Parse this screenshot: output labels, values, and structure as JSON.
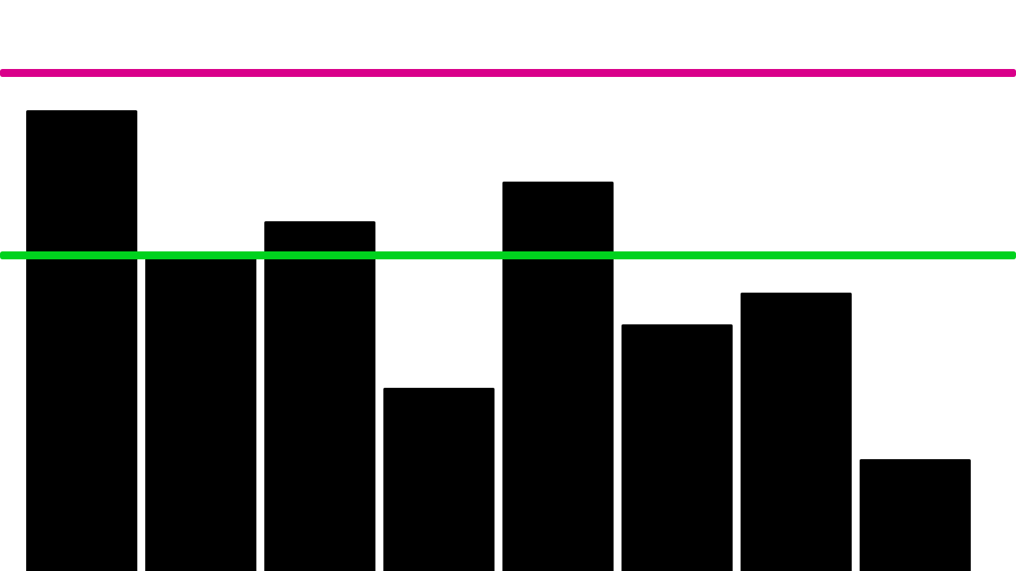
{
  "chart_data": {
    "type": "bar",
    "values": [
      581,
      400,
      441,
      231,
      491,
      311,
      351,
      141
    ],
    "color": "#000000",
    "ylim": [
      0,
      720
    ],
    "reference_lines": [
      {
        "value": 628,
        "color": "#d9008a"
      },
      {
        "value": 398,
        "color": "#00d21e"
      }
    ]
  }
}
